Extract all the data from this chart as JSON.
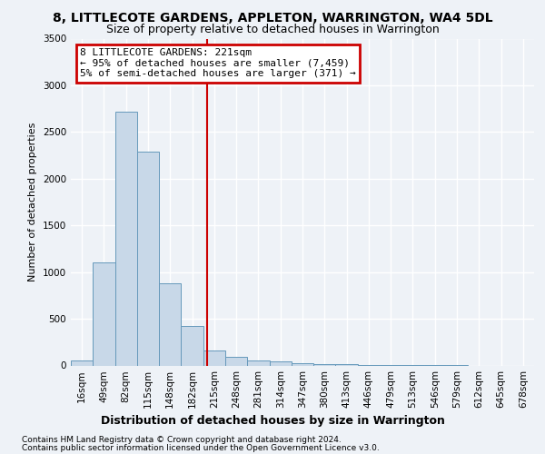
{
  "title": "8, LITTLECOTE GARDENS, APPLETON, WARRINGTON, WA4 5DL",
  "subtitle": "Size of property relative to detached houses in Warrington",
  "xlabel": "Distribution of detached houses by size in Warrington",
  "ylabel": "Number of detached properties",
  "categories": [
    "16sqm",
    "49sqm",
    "82sqm",
    "115sqm",
    "148sqm",
    "182sqm",
    "215sqm",
    "248sqm",
    "281sqm",
    "314sqm",
    "347sqm",
    "380sqm",
    "413sqm",
    "446sqm",
    "479sqm",
    "513sqm",
    "546sqm",
    "579sqm",
    "612sqm",
    "645sqm",
    "678sqm"
  ],
  "values": [
    50,
    1100,
    2720,
    2290,
    880,
    420,
    165,
    90,
    55,
    40,
    25,
    15,
    10,
    5,
    3,
    2,
    1,
    1,
    0,
    0,
    0
  ],
  "bar_color": "#c8d8e8",
  "bar_edge_color": "#6699bb",
  "annotation_text": "8 LITTLECOTE GARDENS: 221sqm\n← 95% of detached houses are smaller (7,459)\n5% of semi-detached houses are larger (371) →",
  "annotation_box_color": "#ffffff",
  "annotation_box_edge": "#cc0000",
  "line_color": "#cc0000",
  "footer1": "Contains HM Land Registry data © Crown copyright and database right 2024.",
  "footer2": "Contains public sector information licensed under the Open Government Licence v3.0.",
  "ylim": [
    0,
    3500
  ],
  "yticks": [
    0,
    500,
    1000,
    1500,
    2000,
    2500,
    3000,
    3500
  ],
  "background_color": "#eef2f7",
  "grid_color": "#ffffff",
  "title_fontsize": 10,
  "subtitle_fontsize": 9,
  "ylabel_fontsize": 8,
  "xlabel_fontsize": 9,
  "tick_fontsize": 7.5,
  "footer_fontsize": 6.5,
  "annot_fontsize": 8
}
